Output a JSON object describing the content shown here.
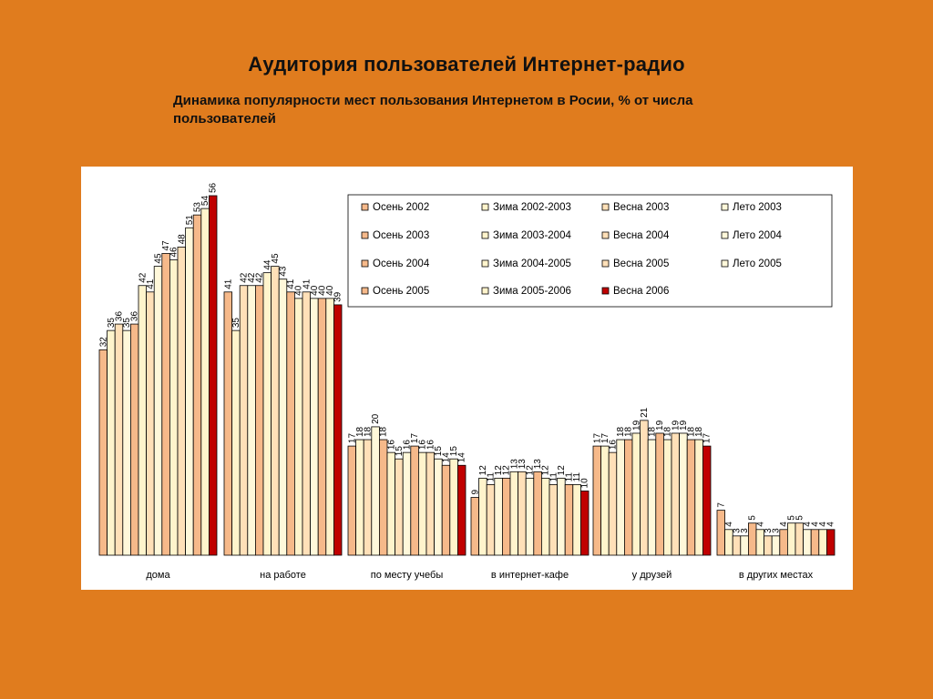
{
  "slide": {
    "title": "Аудитория пользователей Интернет-радио",
    "subtitle": "Динамика популярности мест пользования Интернетом в Росии, % от числа пользователей"
  },
  "colors": {
    "background": "#e07c1e",
    "series": [
      "#f6b98a",
      "#fff4cc",
      "#ffe0b8",
      "#fff8da",
      "#f6b98a",
      "#fff4cc",
      "#ffe0b8",
      "#fff8da",
      "#f6b98a",
      "#fff4cc",
      "#ffe0b8",
      "#fff8da",
      "#f6b98a",
      "#fff4cc",
      "#c00000"
    ]
  },
  "chart_data": {
    "type": "bar",
    "title": "",
    "xlabel": "",
    "ylabel": "",
    "ylim": [
      0,
      56
    ],
    "grid": false,
    "legend_position": "top-right",
    "categories": [
      "дома",
      "на работе",
      "по месту учебы",
      "в интернет-кафе",
      "у друзей",
      "в других местах"
    ],
    "series": [
      {
        "name": "Осень 2002",
        "values": [
          32,
          41,
          17,
          9,
          17,
          7
        ]
      },
      {
        "name": "Зима 2002-2003",
        "values": [
          35,
          35,
          18,
          12,
          17,
          4
        ]
      },
      {
        "name": "Весна 2003",
        "values": [
          36,
          42,
          18,
          11,
          16,
          3
        ]
      },
      {
        "name": "Лето 2003",
        "values": [
          35,
          42,
          20,
          12,
          18,
          3
        ]
      },
      {
        "name": "Осень 2003",
        "values": [
          36,
          42,
          18,
          12,
          18,
          5
        ]
      },
      {
        "name": "Зима 2003-2004",
        "values": [
          42,
          44,
          16,
          13,
          19,
          4
        ]
      },
      {
        "name": "Весна 2004",
        "values": [
          41,
          45,
          15,
          13,
          21,
          3
        ]
      },
      {
        "name": "Лето 2004",
        "values": [
          45,
          43,
          16,
          12,
          18,
          3
        ]
      },
      {
        "name": "Осень 2004",
        "values": [
          47,
          41,
          17,
          13,
          19,
          4
        ]
      },
      {
        "name": "Зима 2004-2005",
        "values": [
          46,
          40,
          16,
          12,
          18,
          5
        ]
      },
      {
        "name": "Весна 2005",
        "values": [
          48,
          41,
          16,
          11,
          19,
          5
        ]
      },
      {
        "name": "Лето 2005",
        "values": [
          51,
          40,
          15,
          12,
          19,
          4
        ]
      },
      {
        "name": "Осень 2005",
        "values": [
          53,
          40,
          14,
          11,
          18,
          4
        ]
      },
      {
        "name": "Зима 2005-2006",
        "values": [
          54,
          40,
          15,
          11,
          18,
          4
        ]
      },
      {
        "name": "Весна 2006",
        "values": [
          56,
          39,
          14,
          10,
          17,
          4
        ]
      }
    ]
  }
}
